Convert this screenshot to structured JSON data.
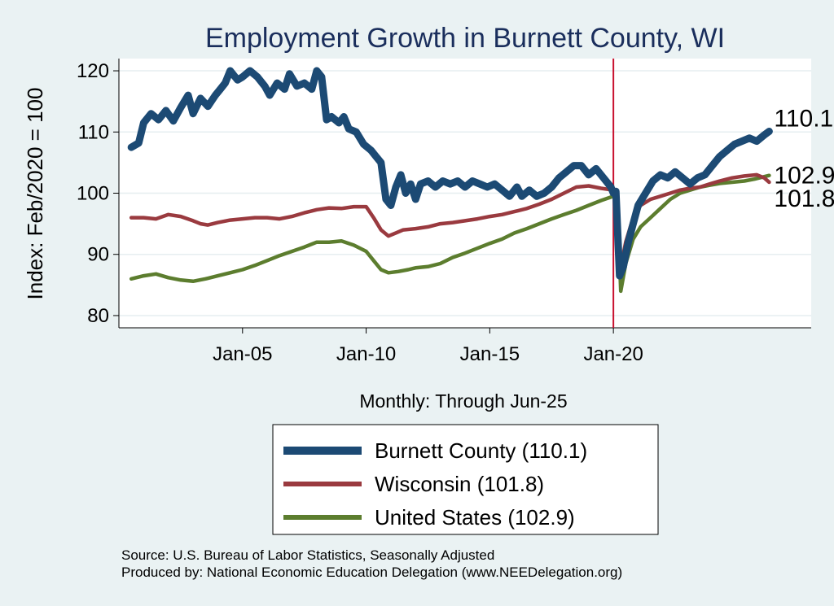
{
  "chart_data": {
    "type": "line",
    "title": "Employment Growth in Burnett  County, WI",
    "xlabel": "Monthly: Through Jun-25",
    "ylabel": "Index: Feb/2020 = 100",
    "xlim": [
      2000.0,
      2028.0
    ],
    "ylim": [
      78.0,
      122.0
    ],
    "yticks": [
      80,
      90,
      100,
      110,
      120
    ],
    "xticks": [
      {
        "label": "Jan-05",
        "x": 2005.0
      },
      {
        "label": "Jan-10",
        "x": 2010.0
      },
      {
        "label": "Jan-15",
        "x": 2015.0
      },
      {
        "label": "Jan-20",
        "x": 2020.0
      }
    ],
    "vline": 2020.0,
    "series": [
      {
        "name": "Burnett  County (110.1)",
        "color": "#1c4a74",
        "width": 9,
        "end_label": "110.1",
        "points": [
          [
            2000.5,
            107.5
          ],
          [
            2000.8,
            108.2
          ],
          [
            2001.0,
            111.5
          ],
          [
            2001.3,
            113.0
          ],
          [
            2001.6,
            112.0
          ],
          [
            2001.9,
            113.5
          ],
          [
            2002.2,
            111.8
          ],
          [
            2002.5,
            114.0
          ],
          [
            2002.8,
            116.0
          ],
          [
            2003.0,
            113.0
          ],
          [
            2003.3,
            115.5
          ],
          [
            2003.6,
            114.2
          ],
          [
            2003.9,
            116.0
          ],
          [
            2004.1,
            117.0
          ],
          [
            2004.3,
            118.0
          ],
          [
            2004.5,
            120.0
          ],
          [
            2004.8,
            118.5
          ],
          [
            2005.0,
            119.0
          ],
          [
            2005.3,
            120.0
          ],
          [
            2005.6,
            119.0
          ],
          [
            2005.9,
            117.5
          ],
          [
            2006.1,
            116.0
          ],
          [
            2006.4,
            118.0
          ],
          [
            2006.7,
            117.0
          ],
          [
            2006.9,
            119.5
          ],
          [
            2007.2,
            117.5
          ],
          [
            2007.5,
            118.0
          ],
          [
            2007.8,
            117.0
          ],
          [
            2008.0,
            120.0
          ],
          [
            2008.2,
            119.0
          ],
          [
            2008.4,
            112.0
          ],
          [
            2008.6,
            112.5
          ],
          [
            2008.9,
            111.5
          ],
          [
            2009.1,
            112.5
          ],
          [
            2009.3,
            110.5
          ],
          [
            2009.6,
            110.0
          ],
          [
            2009.9,
            108.0
          ],
          [
            2010.2,
            107.0
          ],
          [
            2010.4,
            106.0
          ],
          [
            2010.6,
            105.0
          ],
          [
            2010.8,
            99.0
          ],
          [
            2011.0,
            98.0
          ],
          [
            2011.2,
            101.0
          ],
          [
            2011.4,
            103.0
          ],
          [
            2011.6,
            100.0
          ],
          [
            2011.8,
            101.5
          ],
          [
            2012.0,
            99.0
          ],
          [
            2012.2,
            101.5
          ],
          [
            2012.5,
            102.0
          ],
          [
            2012.8,
            101.0
          ],
          [
            2013.1,
            102.0
          ],
          [
            2013.4,
            101.5
          ],
          [
            2013.7,
            102.0
          ],
          [
            2014.0,
            101.0
          ],
          [
            2014.3,
            102.0
          ],
          [
            2014.6,
            101.5
          ],
          [
            2014.9,
            101.0
          ],
          [
            2015.2,
            101.5
          ],
          [
            2015.5,
            100.5
          ],
          [
            2015.8,
            99.5
          ],
          [
            2016.1,
            101.0
          ],
          [
            2016.3,
            99.5
          ],
          [
            2016.6,
            100.5
          ],
          [
            2016.9,
            99.5
          ],
          [
            2017.2,
            100.0
          ],
          [
            2017.5,
            101.0
          ],
          [
            2017.8,
            102.5
          ],
          [
            2018.1,
            103.5
          ],
          [
            2018.4,
            104.5
          ],
          [
            2018.7,
            104.5
          ],
          [
            2019.0,
            103.0
          ],
          [
            2019.3,
            104.0
          ],
          [
            2019.6,
            102.5
          ],
          [
            2019.9,
            101.0
          ],
          [
            2020.0,
            100.0
          ],
          [
            2020.1,
            100.3
          ],
          [
            2020.25,
            86.5
          ],
          [
            2020.4,
            88.0
          ],
          [
            2020.6,
            92.0
          ],
          [
            2020.8,
            95.0
          ],
          [
            2021.0,
            98.0
          ],
          [
            2021.3,
            100.0
          ],
          [
            2021.6,
            102.0
          ],
          [
            2021.9,
            103.0
          ],
          [
            2022.2,
            102.5
          ],
          [
            2022.5,
            103.5
          ],
          [
            2022.8,
            102.5
          ],
          [
            2023.1,
            101.5
          ],
          [
            2023.4,
            102.5
          ],
          [
            2023.7,
            103.0
          ],
          [
            2024.0,
            104.5
          ],
          [
            2024.3,
            106.0
          ],
          [
            2024.6,
            107.0
          ],
          [
            2024.9,
            108.0
          ],
          [
            2025.2,
            108.5
          ],
          [
            2025.5,
            109.0
          ],
          [
            2025.8,
            108.5
          ],
          [
            2026.1,
            109.5
          ],
          [
            2026.3,
            110.1
          ]
        ]
      },
      {
        "name": "Wisconsin (101.8)",
        "color": "#9a3a3f",
        "width": 4.5,
        "end_label": "101.8",
        "points": [
          [
            2000.5,
            96.0
          ],
          [
            2001.0,
            96.0
          ],
          [
            2001.5,
            95.8
          ],
          [
            2002.0,
            96.5
          ],
          [
            2002.5,
            96.2
          ],
          [
            2003.0,
            95.5
          ],
          [
            2003.3,
            95.0
          ],
          [
            2003.6,
            94.8
          ],
          [
            2004.0,
            95.2
          ],
          [
            2004.5,
            95.6
          ],
          [
            2005.0,
            95.8
          ],
          [
            2005.5,
            96.0
          ],
          [
            2006.0,
            96.0
          ],
          [
            2006.5,
            95.8
          ],
          [
            2007.0,
            96.2
          ],
          [
            2007.5,
            96.8
          ],
          [
            2008.0,
            97.3
          ],
          [
            2008.5,
            97.6
          ],
          [
            2009.0,
            97.5
          ],
          [
            2009.5,
            97.8
          ],
          [
            2010.0,
            97.8
          ],
          [
            2010.3,
            96.0
          ],
          [
            2010.6,
            94.0
          ],
          [
            2010.9,
            93.0
          ],
          [
            2011.2,
            93.5
          ],
          [
            2011.5,
            94.0
          ],
          [
            2012.0,
            94.2
          ],
          [
            2012.5,
            94.5
          ],
          [
            2013.0,
            95.0
          ],
          [
            2013.5,
            95.2
          ],
          [
            2014.0,
            95.5
          ],
          [
            2014.5,
            95.8
          ],
          [
            2015.0,
            96.2
          ],
          [
            2015.5,
            96.5
          ],
          [
            2016.0,
            97.0
          ],
          [
            2016.5,
            97.5
          ],
          [
            2017.0,
            98.2
          ],
          [
            2017.5,
            99.0
          ],
          [
            2018.0,
            100.0
          ],
          [
            2018.5,
            101.0
          ],
          [
            2019.0,
            101.2
          ],
          [
            2019.5,
            100.8
          ],
          [
            2020.0,
            100.5
          ],
          [
            2020.15,
            100.0
          ],
          [
            2020.3,
            88.0
          ],
          [
            2020.5,
            92.0
          ],
          [
            2020.8,
            96.0
          ],
          [
            2021.1,
            98.0
          ],
          [
            2021.5,
            99.0
          ],
          [
            2021.9,
            99.5
          ],
          [
            2022.3,
            100.0
          ],
          [
            2022.7,
            100.5
          ],
          [
            2023.1,
            100.8
          ],
          [
            2023.5,
            101.0
          ],
          [
            2023.9,
            101.5
          ],
          [
            2024.3,
            102.0
          ],
          [
            2024.8,
            102.5
          ],
          [
            2025.3,
            102.8
          ],
          [
            2025.8,
            103.0
          ],
          [
            2026.1,
            102.5
          ],
          [
            2026.3,
            101.8
          ]
        ]
      },
      {
        "name": "United States (102.9)",
        "color": "#5c7d2e",
        "width": 4.5,
        "end_label": "102.9",
        "points": [
          [
            2000.5,
            86.0
          ],
          [
            2001.0,
            86.5
          ],
          [
            2001.5,
            86.8
          ],
          [
            2002.0,
            86.2
          ],
          [
            2002.5,
            85.8
          ],
          [
            2003.0,
            85.6
          ],
          [
            2003.5,
            86.0
          ],
          [
            2004.0,
            86.5
          ],
          [
            2004.5,
            87.0
          ],
          [
            2005.0,
            87.5
          ],
          [
            2005.5,
            88.2
          ],
          [
            2006.0,
            89.0
          ],
          [
            2006.5,
            89.8
          ],
          [
            2007.0,
            90.5
          ],
          [
            2007.5,
            91.2
          ],
          [
            2008.0,
            92.0
          ],
          [
            2008.5,
            92.0
          ],
          [
            2009.0,
            92.2
          ],
          [
            2009.5,
            91.5
          ],
          [
            2010.0,
            90.5
          ],
          [
            2010.3,
            89.0
          ],
          [
            2010.6,
            87.5
          ],
          [
            2010.9,
            87.0
          ],
          [
            2011.3,
            87.2
          ],
          [
            2011.7,
            87.5
          ],
          [
            2012.0,
            87.8
          ],
          [
            2012.5,
            88.0
          ],
          [
            2013.0,
            88.5
          ],
          [
            2013.5,
            89.5
          ],
          [
            2014.0,
            90.2
          ],
          [
            2014.5,
            91.0
          ],
          [
            2015.0,
            91.8
          ],
          [
            2015.5,
            92.5
          ],
          [
            2016.0,
            93.5
          ],
          [
            2016.5,
            94.2
          ],
          [
            2017.0,
            95.0
          ],
          [
            2017.5,
            95.8
          ],
          [
            2018.0,
            96.5
          ],
          [
            2018.5,
            97.2
          ],
          [
            2019.0,
            98.0
          ],
          [
            2019.5,
            98.8
          ],
          [
            2020.0,
            99.5
          ],
          [
            2020.15,
            100.0
          ],
          [
            2020.3,
            84.0
          ],
          [
            2020.5,
            88.5
          ],
          [
            2020.8,
            92.5
          ],
          [
            2021.1,
            94.5
          ],
          [
            2021.5,
            96.0
          ],
          [
            2021.9,
            97.5
          ],
          [
            2022.3,
            99.0
          ],
          [
            2022.7,
            100.0
          ],
          [
            2023.1,
            100.5
          ],
          [
            2023.5,
            101.0
          ],
          [
            2023.9,
            101.3
          ],
          [
            2024.3,
            101.6
          ],
          [
            2024.8,
            101.8
          ],
          [
            2025.3,
            102.0
          ],
          [
            2025.7,
            102.3
          ],
          [
            2026.0,
            102.6
          ],
          [
            2026.3,
            102.9
          ]
        ]
      }
    ],
    "legend": {
      "placement": "bottom",
      "entries": [
        "Burnett  County (110.1)",
        "Wisconsin (101.8)",
        "United States (102.9)"
      ]
    },
    "source_lines": [
      "Source: U.S. Bureau of Labor Statistics, Seasonally Adjusted",
      "Produced by: National Economic Education Delegation (www.NEEDelegation.org)"
    ]
  }
}
